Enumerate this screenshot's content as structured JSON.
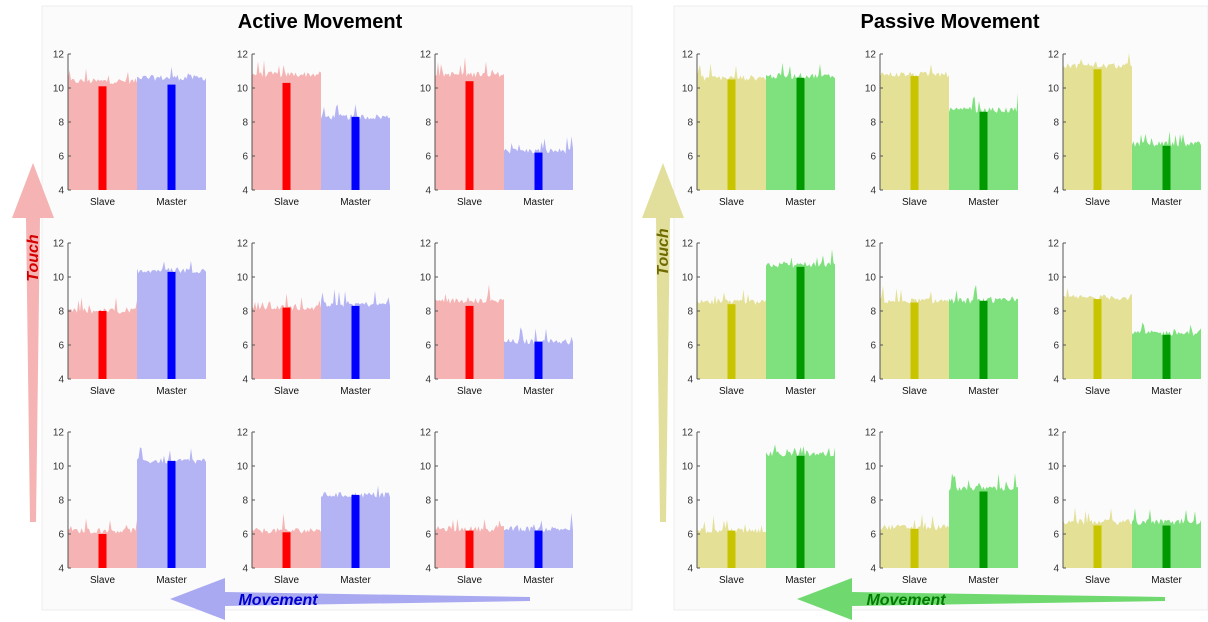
{
  "panels": [
    {
      "title": "Active Movement",
      "arrows": {
        "vertical_label": "Touch",
        "horizontal_label": "Movement"
      },
      "colors": {
        "slave_bg": "#f5b3b3",
        "slave_bar": "#ff0000",
        "master_bg": "#b4b4f5",
        "master_bar": "#0000ff",
        "vertical_arrow": "#f5b3b3",
        "horizontal_arrow": "#a9a9f2",
        "vertical_text": "#d40000",
        "horizontal_text": "#0000cc"
      }
    },
    {
      "title": "Passive Movement",
      "arrows": {
        "vertical_label": "Touch",
        "horizontal_label": "Movement"
      },
      "colors": {
        "slave_bg": "#e4e096",
        "slave_bar": "#c9c400",
        "master_bg": "#7ee17e",
        "master_bar": "#009900",
        "vertical_arrow": "#e2df9c",
        "horizontal_arrow": "#6fd96f",
        "vertical_text": "#6e6a00",
        "horizontal_text": "#007a00"
      }
    }
  ],
  "chart_data": [
    {
      "type": "bar",
      "panel": "Active Movement",
      "categories": [
        "Slave",
        "Master"
      ],
      "ylim": [
        4,
        12
      ],
      "yticks": [
        4,
        6,
        8,
        10,
        12
      ],
      "grid": false,
      "subplots": [
        {
          "row": 1,
          "col": 1,
          "values": [
            10.1,
            10.2
          ],
          "noise_top": [
            10.4,
            10.6
          ]
        },
        {
          "row": 1,
          "col": 2,
          "values": [
            10.3,
            8.3
          ],
          "noise_top": [
            10.8,
            8.3
          ]
        },
        {
          "row": 1,
          "col": 3,
          "values": [
            10.4,
            6.2
          ],
          "noise_top": [
            10.8,
            6.3
          ]
        },
        {
          "row": 2,
          "col": 1,
          "values": [
            8.0,
            10.3
          ],
          "noise_top": [
            8.0,
            10.4
          ]
        },
        {
          "row": 2,
          "col": 2,
          "values": [
            8.2,
            8.3
          ],
          "noise_top": [
            8.2,
            8.4
          ]
        },
        {
          "row": 2,
          "col": 3,
          "values": [
            8.3,
            6.2
          ],
          "noise_top": [
            8.6,
            6.2
          ]
        },
        {
          "row": 3,
          "col": 1,
          "values": [
            6.0,
            10.3
          ],
          "noise_top": [
            6.2,
            10.3
          ]
        },
        {
          "row": 3,
          "col": 2,
          "values": [
            6.1,
            8.3
          ],
          "noise_top": [
            6.2,
            8.3
          ]
        },
        {
          "row": 3,
          "col": 3,
          "values": [
            6.2,
            6.2
          ],
          "noise_top": [
            6.3,
            6.3
          ]
        }
      ]
    },
    {
      "type": "bar",
      "panel": "Passive Movement",
      "categories": [
        "Slave",
        "Master"
      ],
      "ylim": [
        4,
        12
      ],
      "yticks": [
        4,
        6,
        8,
        10,
        12
      ],
      "grid": false,
      "subplots": [
        {
          "row": 1,
          "col": 1,
          "values": [
            10.5,
            10.6
          ],
          "noise_top": [
            10.6,
            10.7
          ]
        },
        {
          "row": 1,
          "col": 2,
          "values": [
            10.7,
            8.6
          ],
          "noise_top": [
            10.8,
            8.7
          ]
        },
        {
          "row": 1,
          "col": 3,
          "values": [
            11.1,
            6.6
          ],
          "noise_top": [
            11.3,
            6.7
          ]
        },
        {
          "row": 2,
          "col": 1,
          "values": [
            8.4,
            10.6
          ],
          "noise_top": [
            8.5,
            10.7
          ]
        },
        {
          "row": 2,
          "col": 2,
          "values": [
            8.5,
            8.6
          ],
          "noise_top": [
            8.6,
            8.6
          ]
        },
        {
          "row": 2,
          "col": 3,
          "values": [
            8.7,
            6.6
          ],
          "noise_top": [
            8.8,
            6.7
          ]
        },
        {
          "row": 3,
          "col": 1,
          "values": [
            6.2,
            10.6
          ],
          "noise_top": [
            6.2,
            10.7
          ]
        },
        {
          "row": 3,
          "col": 2,
          "values": [
            6.3,
            8.5
          ],
          "noise_top": [
            6.4,
            8.7
          ]
        },
        {
          "row": 3,
          "col": 3,
          "values": [
            6.5,
            6.5
          ],
          "noise_top": [
            6.7,
            6.7
          ]
        }
      ]
    }
  ]
}
